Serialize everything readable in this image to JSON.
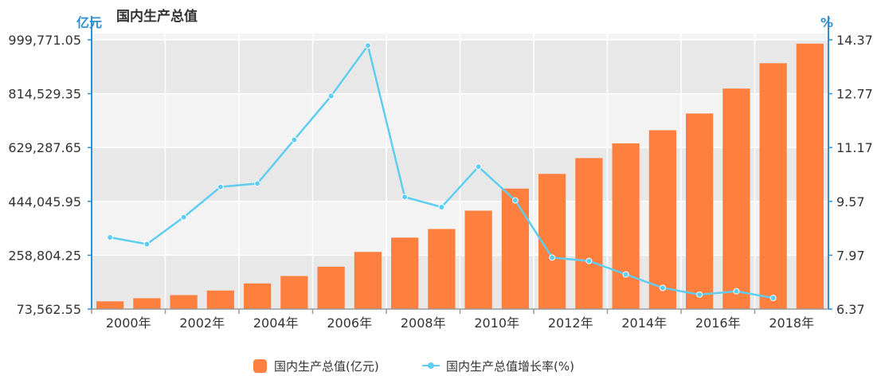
{
  "chart_data": {
    "type": "bar",
    "title": "国内生产总值",
    "left_axis_unit": "亿元",
    "right_axis_unit": "%",
    "left_ticks": [
      "73,562.55",
      "258,804.25",
      "444,045.95",
      "629,287.65",
      "814,529.35",
      "999,771.05"
    ],
    "right_ticks": [
      "6.37",
      "7.97",
      "9.57",
      "11.17",
      "12.77",
      "14.37"
    ],
    "ylim_left": [
      73562.55,
      999771.05
    ],
    "ylim_right": [
      6.37,
      14.37
    ],
    "x_tick_labels": [
      "2000年",
      "2002年",
      "2004年",
      "2006年",
      "2008年",
      "2010年",
      "2012年",
      "2014年",
      "2016年",
      "2018年"
    ],
    "categories": [
      "2000",
      "2001",
      "2002",
      "2003",
      "2004",
      "2005",
      "2006",
      "2007",
      "2008",
      "2009",
      "2010",
      "2011",
      "2012",
      "2013",
      "2014",
      "2015",
      "2016",
      "2017",
      "2018",
      "2019"
    ],
    "series": [
      {
        "name": "国内生产总值(亿元)",
        "type": "bar",
        "color": "#ff7f3f",
        "values": [
          100280,
          110863,
          121717,
          137422,
          161840,
          187319,
          219438,
          270232,
          319516,
          349081,
          412119,
          487940,
          538580,
          592963,
          643563,
          688858,
          746395,
          832036,
          919281,
          986515
        ]
      },
      {
        "name": "国内生产总值增长率(%)",
        "type": "line",
        "color": "#5ecdf0",
        "values": [
          8.5,
          8.3,
          9.1,
          10.0,
          10.1,
          11.4,
          12.7,
          14.2,
          9.7,
          9.4,
          10.6,
          9.6,
          7.9,
          7.8,
          7.4,
          7.0,
          6.8,
          6.9,
          6.7,
          null
        ]
      }
    ],
    "grid": true,
    "legend_position": "bottom"
  }
}
